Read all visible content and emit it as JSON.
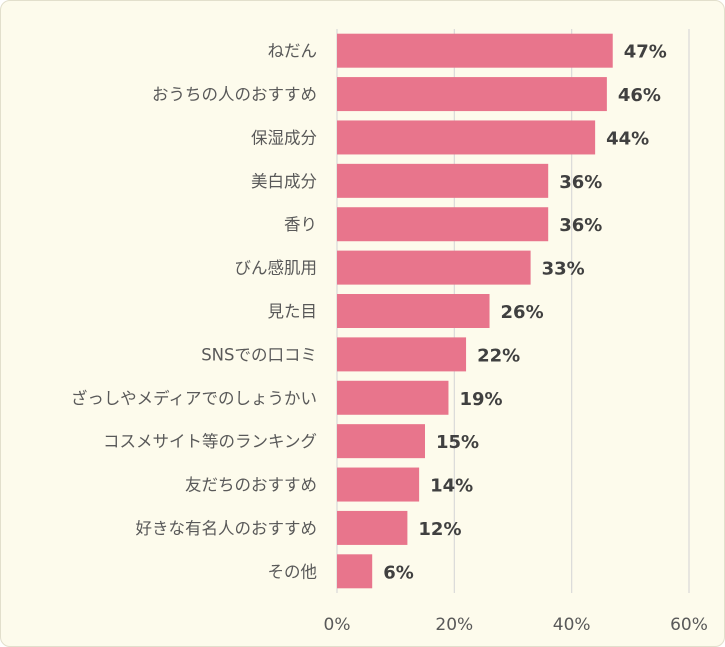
{
  "chart_data": {
    "type": "bar",
    "orientation": "horizontal",
    "categories": [
      "ねだん",
      "おうちの人のおすすめ",
      "保湿成分",
      "美白成分",
      "香り",
      "びん感肌用",
      "見た目",
      "SNSでの口コミ",
      "ざっしやメディアでのしょうかい",
      "コスメサイト等のランキング",
      "友だちのおすすめ",
      "好きな有名人のおすすめ",
      "その他"
    ],
    "values": [
      47,
      46,
      44,
      36,
      36,
      33,
      26,
      22,
      19,
      15,
      14,
      12,
      6
    ],
    "value_labels": [
      "47%",
      "46%",
      "44%",
      "36%",
      "36%",
      "33%",
      "26%",
      "22%",
      "19%",
      "15%",
      "14%",
      "12%",
      "6%"
    ],
    "xlim": [
      0,
      60
    ],
    "xticks": [
      0,
      20,
      40,
      60
    ],
    "xtick_labels": [
      "0%",
      "20%",
      "40%",
      "60%"
    ],
    "grid": true,
    "legend": "none",
    "bar_color": "#e8758c",
    "grid_color": "#d9d9d9",
    "background_color": "#fdfbec"
  }
}
